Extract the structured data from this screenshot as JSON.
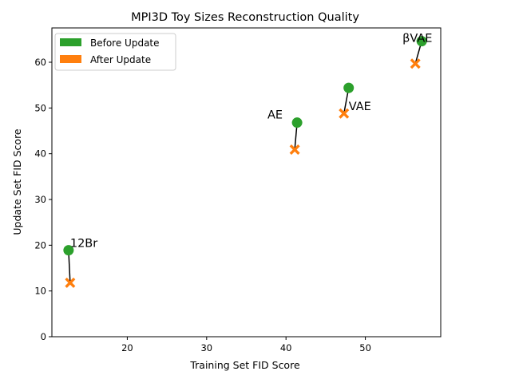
{
  "chart_data": {
    "type": "scatter",
    "title": "MPI3D Toy Sizes Reconstruction Quality",
    "xlabel": "Training Set FID Score",
    "ylabel": "Update Set FID Score",
    "xlim": [
      10.5,
      59.5
    ],
    "ylim": [
      0,
      67.5
    ],
    "xticks": [
      20,
      30,
      40,
      50
    ],
    "yticks": [
      0,
      10,
      20,
      30,
      40,
      50,
      60
    ],
    "grid": false,
    "legend_position": "top-left",
    "series": [
      {
        "name": "Before Update",
        "marker": "circle",
        "color": "#2ca02c"
      },
      {
        "name": "After Update",
        "marker": "x-filled",
        "color": "#ff7f0e"
      }
    ],
    "points": [
      {
        "label": "12Br",
        "before": {
          "x": 12.6,
          "y": 18.9
        },
        "after": {
          "x": 12.8,
          "y": 11.8
        }
      },
      {
        "label": "AE",
        "before": {
          "x": 41.4,
          "y": 46.8
        },
        "after": {
          "x": 41.1,
          "y": 40.9
        }
      },
      {
        "label": "VAE",
        "before": {
          "x": 47.9,
          "y": 54.4
        },
        "after": {
          "x": 47.3,
          "y": 48.8
        }
      },
      {
        "label": "βVAE",
        "before": {
          "x": 57.1,
          "y": 64.6
        },
        "after": {
          "x": 56.3,
          "y": 59.7
        }
      }
    ]
  }
}
